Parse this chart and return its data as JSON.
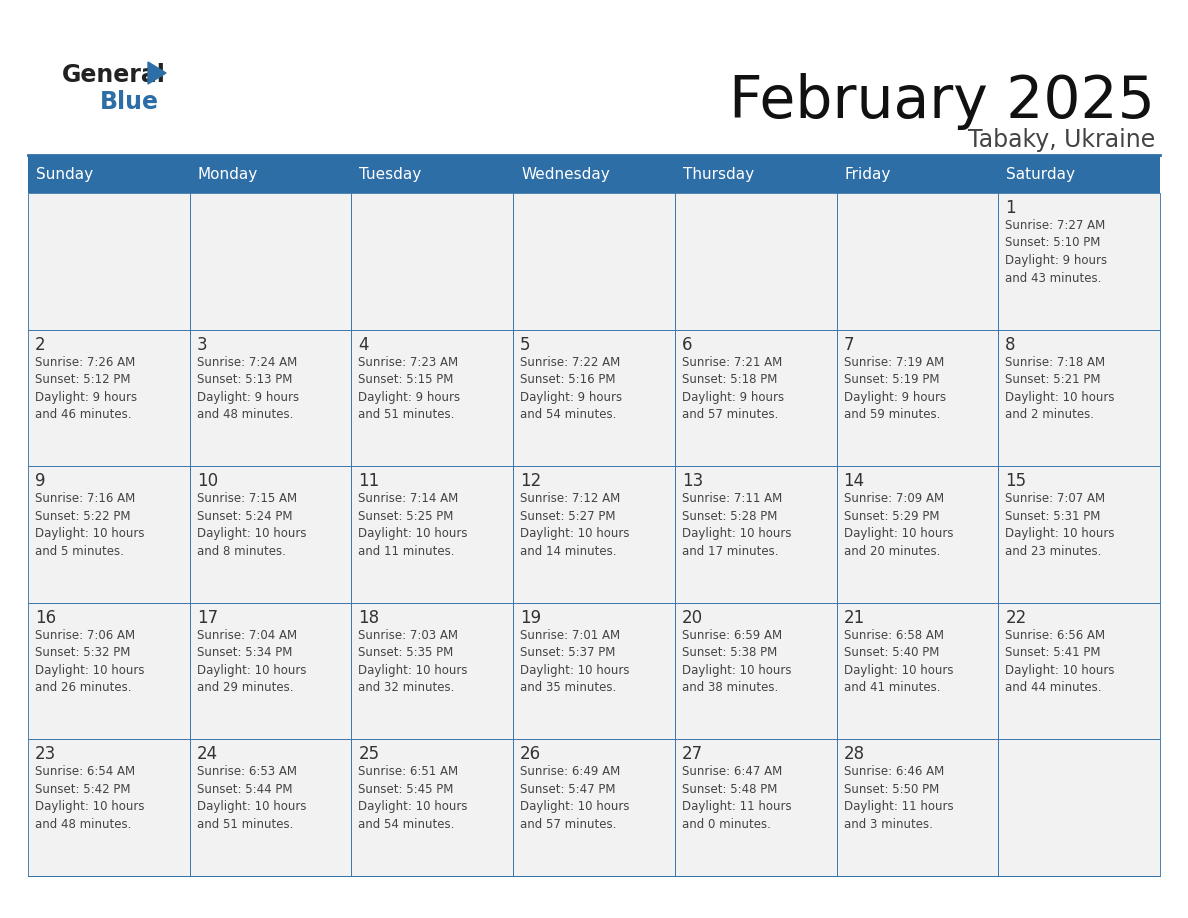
{
  "title": "February 2025",
  "subtitle": "Tabaky, Ukraine",
  "days_of_week": [
    "Sunday",
    "Monday",
    "Tuesday",
    "Wednesday",
    "Thursday",
    "Friday",
    "Saturday"
  ],
  "header_bg": "#2E6EA6",
  "header_text_color": "#FFFFFF",
  "cell_bg": "#F2F2F2",
  "border_color": "#2E6EA6",
  "text_color": "#444444",
  "day_number_color": "#333333",
  "title_color": "#111111",
  "subtitle_color": "#444444",
  "calendar_data": [
    [
      null,
      null,
      null,
      null,
      null,
      null,
      {
        "day": 1,
        "sunrise": "7:27 AM",
        "sunset": "5:10 PM",
        "daylight": "9 hours",
        "daylight2": "and 43 minutes."
      }
    ],
    [
      {
        "day": 2,
        "sunrise": "7:26 AM",
        "sunset": "5:12 PM",
        "daylight": "9 hours",
        "daylight2": "and 46 minutes."
      },
      {
        "day": 3,
        "sunrise": "7:24 AM",
        "sunset": "5:13 PM",
        "daylight": "9 hours",
        "daylight2": "and 48 minutes."
      },
      {
        "day": 4,
        "sunrise": "7:23 AM",
        "sunset": "5:15 PM",
        "daylight": "9 hours",
        "daylight2": "and 51 minutes."
      },
      {
        "day": 5,
        "sunrise": "7:22 AM",
        "sunset": "5:16 PM",
        "daylight": "9 hours",
        "daylight2": "and 54 minutes."
      },
      {
        "day": 6,
        "sunrise": "7:21 AM",
        "sunset": "5:18 PM",
        "daylight": "9 hours",
        "daylight2": "and 57 minutes."
      },
      {
        "day": 7,
        "sunrise": "7:19 AM",
        "sunset": "5:19 PM",
        "daylight": "9 hours",
        "daylight2": "and 59 minutes."
      },
      {
        "day": 8,
        "sunrise": "7:18 AM",
        "sunset": "5:21 PM",
        "daylight": "10 hours",
        "daylight2": "and 2 minutes."
      }
    ],
    [
      {
        "day": 9,
        "sunrise": "7:16 AM",
        "sunset": "5:22 PM",
        "daylight": "10 hours",
        "daylight2": "and 5 minutes."
      },
      {
        "day": 10,
        "sunrise": "7:15 AM",
        "sunset": "5:24 PM",
        "daylight": "10 hours",
        "daylight2": "and 8 minutes."
      },
      {
        "day": 11,
        "sunrise": "7:14 AM",
        "sunset": "5:25 PM",
        "daylight": "10 hours",
        "daylight2": "and 11 minutes."
      },
      {
        "day": 12,
        "sunrise": "7:12 AM",
        "sunset": "5:27 PM",
        "daylight": "10 hours",
        "daylight2": "and 14 minutes."
      },
      {
        "day": 13,
        "sunrise": "7:11 AM",
        "sunset": "5:28 PM",
        "daylight": "10 hours",
        "daylight2": "and 17 minutes."
      },
      {
        "day": 14,
        "sunrise": "7:09 AM",
        "sunset": "5:29 PM",
        "daylight": "10 hours",
        "daylight2": "and 20 minutes."
      },
      {
        "day": 15,
        "sunrise": "7:07 AM",
        "sunset": "5:31 PM",
        "daylight": "10 hours",
        "daylight2": "and 23 minutes."
      }
    ],
    [
      {
        "day": 16,
        "sunrise": "7:06 AM",
        "sunset": "5:32 PM",
        "daylight": "10 hours",
        "daylight2": "and 26 minutes."
      },
      {
        "day": 17,
        "sunrise": "7:04 AM",
        "sunset": "5:34 PM",
        "daylight": "10 hours",
        "daylight2": "and 29 minutes."
      },
      {
        "day": 18,
        "sunrise": "7:03 AM",
        "sunset": "5:35 PM",
        "daylight": "10 hours",
        "daylight2": "and 32 minutes."
      },
      {
        "day": 19,
        "sunrise": "7:01 AM",
        "sunset": "5:37 PM",
        "daylight": "10 hours",
        "daylight2": "and 35 minutes."
      },
      {
        "day": 20,
        "sunrise": "6:59 AM",
        "sunset": "5:38 PM",
        "daylight": "10 hours",
        "daylight2": "and 38 minutes."
      },
      {
        "day": 21,
        "sunrise": "6:58 AM",
        "sunset": "5:40 PM",
        "daylight": "10 hours",
        "daylight2": "and 41 minutes."
      },
      {
        "day": 22,
        "sunrise": "6:56 AM",
        "sunset": "5:41 PM",
        "daylight": "10 hours",
        "daylight2": "and 44 minutes."
      }
    ],
    [
      {
        "day": 23,
        "sunrise": "6:54 AM",
        "sunset": "5:42 PM",
        "daylight": "10 hours",
        "daylight2": "and 48 minutes."
      },
      {
        "day": 24,
        "sunrise": "6:53 AM",
        "sunset": "5:44 PM",
        "daylight": "10 hours",
        "daylight2": "and 51 minutes."
      },
      {
        "day": 25,
        "sunrise": "6:51 AM",
        "sunset": "5:45 PM",
        "daylight": "10 hours",
        "daylight2": "and 54 minutes."
      },
      {
        "day": 26,
        "sunrise": "6:49 AM",
        "sunset": "5:47 PM",
        "daylight": "10 hours",
        "daylight2": "and 57 minutes."
      },
      {
        "day": 27,
        "sunrise": "6:47 AM",
        "sunset": "5:48 PM",
        "daylight": "11 hours",
        "daylight2": "and 0 minutes."
      },
      {
        "day": 28,
        "sunrise": "6:46 AM",
        "sunset": "5:50 PM",
        "daylight": "11 hours",
        "daylight2": "and 3 minutes."
      },
      null
    ]
  ]
}
